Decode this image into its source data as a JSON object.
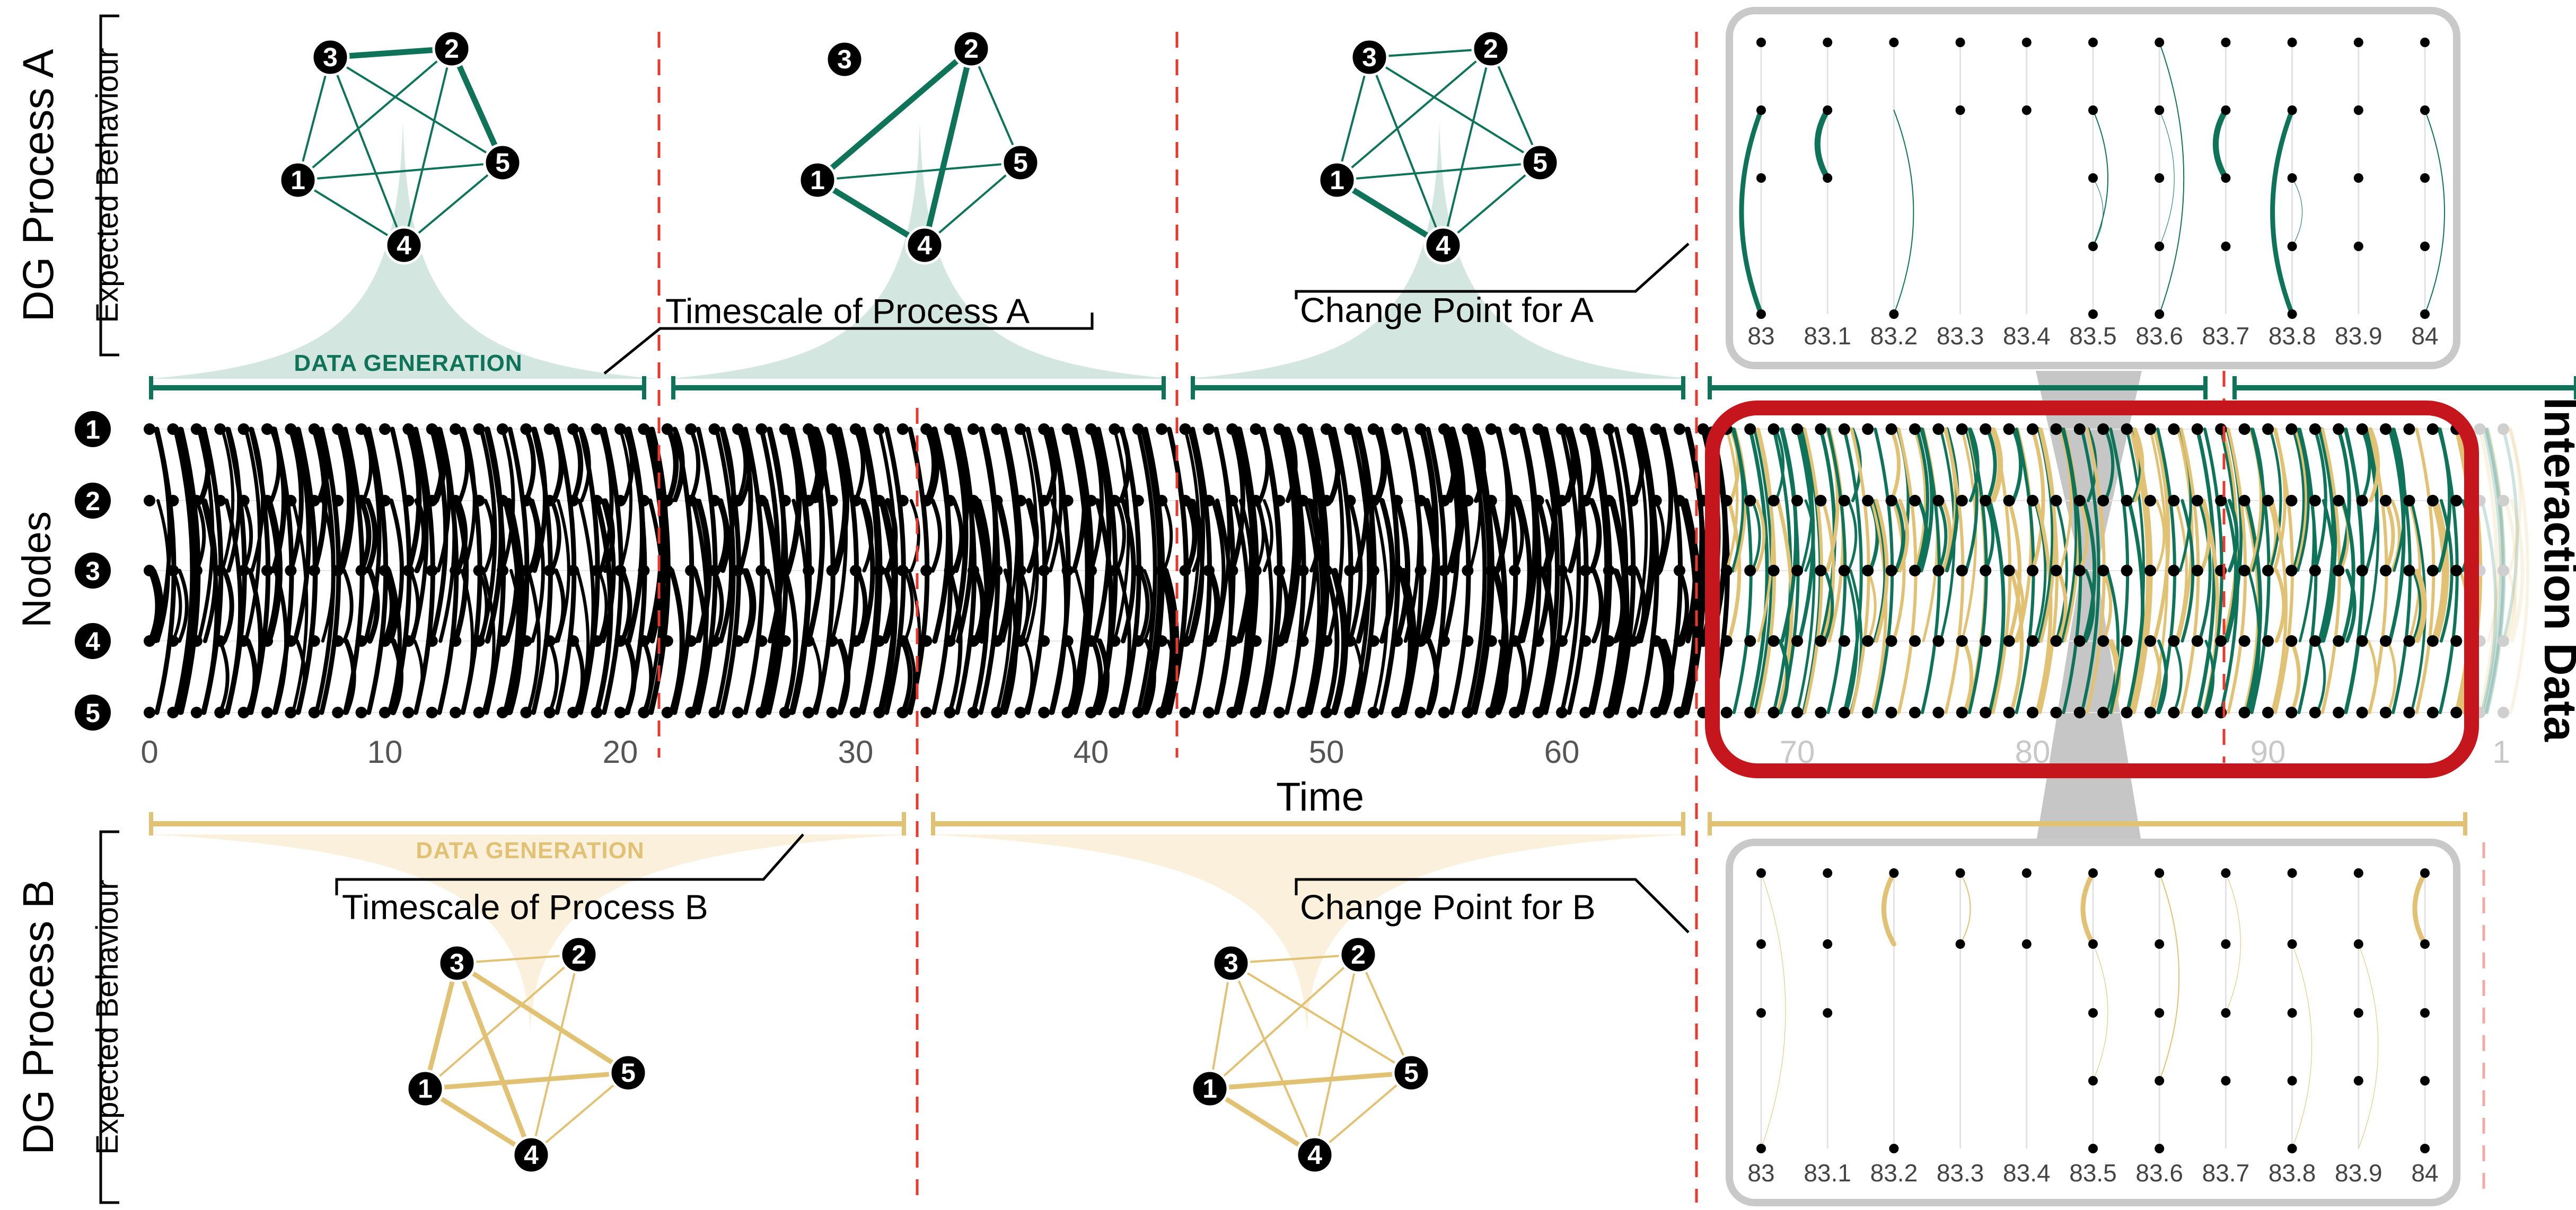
{
  "process_a": {
    "title": "DG Process A",
    "subtitle": "Expected Behaviour",
    "data_generation_label": "DATA GENERATION",
    "timescale_label": "Timescale of Process A",
    "change_point_label": "Change Point for A",
    "color": "#0e7358",
    "fill_color": "#d3e6df"
  },
  "process_b": {
    "title": "DG Process B",
    "subtitle": "Expected Behaviour",
    "data_generation_label": "DATA GENERATION",
    "timescale_label": "Timescale of Process B",
    "change_point_label": "Change Point for B",
    "color": "#e1c173",
    "fill_color": "#faf0dc"
  },
  "interaction": {
    "title": "Interaction Data",
    "y_axis_label": "Nodes",
    "x_axis_label": "Time",
    "highlight_color": "#c4161c",
    "node_labels": [
      "1",
      "2",
      "3",
      "4",
      "5"
    ],
    "time_ticks": [
      "0",
      "10",
      "20",
      "30",
      "40",
      "50",
      "60",
      "70",
      "80",
      "90",
      "1"
    ]
  },
  "inset": {
    "time_ticks": [
      "83",
      "83.1",
      "83.2",
      "83.3",
      "83.4",
      "83.5",
      "83.6",
      "83.7",
      "83.8",
      "83.9",
      "84"
    ]
  },
  "graphs": {
    "node_labels": [
      "1",
      "2",
      "3",
      "4",
      "5"
    ]
  },
  "colors": {
    "changepoint": "#e8392e",
    "text": "#000000",
    "gray": "#bdbdbd"
  }
}
